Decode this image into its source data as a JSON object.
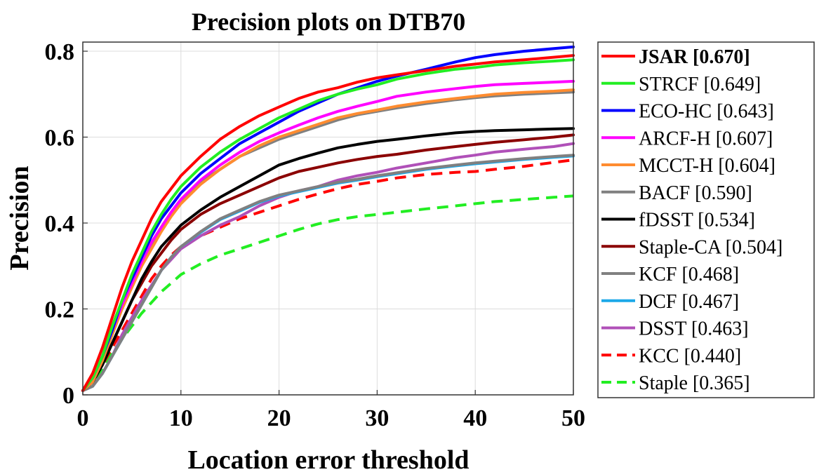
{
  "chart_data": {
    "type": "line",
    "title": "Precision plots on DTB70",
    "xlabel": "Location error threshold",
    "ylabel": "Precision",
    "xlim": [
      0,
      50
    ],
    "ylim": [
      0,
      0.82
    ],
    "xticks": [
      0,
      10,
      20,
      30,
      40,
      50
    ],
    "xtick_labels": [
      "0",
      "10",
      "20",
      "30",
      "40",
      "50"
    ],
    "yticks": [
      0,
      0.2,
      0.4,
      0.6,
      0.8
    ],
    "ytick_labels": [
      "0",
      "0.2",
      "0.4",
      "0.6",
      "0.8"
    ],
    "grid": true,
    "legend_position": "right",
    "x": [
      0,
      1,
      2,
      3,
      4,
      5,
      6,
      7,
      8,
      9,
      10,
      12,
      14,
      16,
      18,
      20,
      22,
      24,
      26,
      28,
      30,
      32,
      35,
      38,
      40,
      42,
      45,
      48,
      50
    ],
    "series": [
      {
        "name": "JSAR [0.670]",
        "label": "JSAR [0.670]",
        "bold": true,
        "color": "#ff0000",
        "dash": "solid",
        "values": [
          0.01,
          0.05,
          0.11,
          0.18,
          0.25,
          0.31,
          0.36,
          0.41,
          0.45,
          0.48,
          0.51,
          0.555,
          0.595,
          0.625,
          0.65,
          0.67,
          0.69,
          0.705,
          0.715,
          0.728,
          0.738,
          0.745,
          0.755,
          0.765,
          0.77,
          0.775,
          0.78,
          0.786,
          0.79
        ]
      },
      {
        "name": "STRCF [0.649]",
        "label": "STRCF [0.649]",
        "color": "#22ee22",
        "dash": "solid",
        "values": [
          0.01,
          0.04,
          0.09,
          0.16,
          0.22,
          0.28,
          0.33,
          0.38,
          0.42,
          0.455,
          0.485,
          0.53,
          0.565,
          0.595,
          0.62,
          0.645,
          0.665,
          0.685,
          0.7,
          0.712,
          0.722,
          0.735,
          0.748,
          0.758,
          0.762,
          0.768,
          0.773,
          0.777,
          0.78
        ]
      },
      {
        "name": "ECO-HC [0.643]",
        "label": "ECO-HC [0.643]",
        "color": "#0000ff",
        "dash": "solid",
        "values": [
          0.01,
          0.04,
          0.09,
          0.15,
          0.22,
          0.27,
          0.32,
          0.37,
          0.41,
          0.44,
          0.47,
          0.515,
          0.55,
          0.585,
          0.61,
          0.635,
          0.66,
          0.68,
          0.7,
          0.715,
          0.73,
          0.742,
          0.758,
          0.775,
          0.785,
          0.792,
          0.8,
          0.806,
          0.81
        ]
      },
      {
        "name": "ARCF-H [0.607]",
        "label": "ARCF-H [0.607]",
        "color": "#ff00ff",
        "dash": "solid",
        "values": [
          0.01,
          0.04,
          0.09,
          0.15,
          0.21,
          0.26,
          0.31,
          0.355,
          0.39,
          0.425,
          0.455,
          0.5,
          0.535,
          0.565,
          0.59,
          0.61,
          0.628,
          0.645,
          0.66,
          0.672,
          0.683,
          0.695,
          0.705,
          0.713,
          0.718,
          0.722,
          0.725,
          0.728,
          0.73
        ]
      },
      {
        "name": "MCCT-H [0.604]",
        "label": "MCCT-H [0.604]",
        "color": "#ff8c30",
        "dash": "solid",
        "values": [
          0.01,
          0.03,
          0.08,
          0.14,
          0.2,
          0.25,
          0.3,
          0.34,
          0.38,
          0.415,
          0.445,
          0.49,
          0.525,
          0.555,
          0.58,
          0.6,
          0.615,
          0.63,
          0.645,
          0.655,
          0.663,
          0.672,
          0.682,
          0.69,
          0.695,
          0.7,
          0.704,
          0.707,
          0.71
        ]
      },
      {
        "name": "BACF [0.590]",
        "label": "BACF [0.590]",
        "color": "#808080",
        "dash": "solid",
        "values": [
          0.01,
          0.04,
          0.09,
          0.15,
          0.21,
          0.26,
          0.31,
          0.35,
          0.39,
          0.425,
          0.45,
          0.495,
          0.525,
          0.555,
          0.575,
          0.595,
          0.61,
          0.625,
          0.64,
          0.652,
          0.66,
          0.668,
          0.678,
          0.687,
          0.692,
          0.696,
          0.7,
          0.703,
          0.705
        ]
      },
      {
        "name": "fDSST [0.534]",
        "label": "fDSST [0.534]",
        "color": "#000000",
        "dash": "solid",
        "values": [
          0.01,
          0.03,
          0.07,
          0.12,
          0.17,
          0.22,
          0.27,
          0.31,
          0.345,
          0.37,
          0.395,
          0.43,
          0.46,
          0.485,
          0.51,
          0.535,
          0.55,
          0.563,
          0.575,
          0.583,
          0.59,
          0.595,
          0.603,
          0.61,
          0.613,
          0.615,
          0.617,
          0.619,
          0.62
        ]
      },
      {
        "name": "Staple-CA [0.504]",
        "label": "Staple-CA [0.504]",
        "color": "#8b0000",
        "dash": "solid",
        "values": [
          0.01,
          0.03,
          0.07,
          0.12,
          0.17,
          0.22,
          0.26,
          0.3,
          0.33,
          0.36,
          0.385,
          0.42,
          0.445,
          0.465,
          0.485,
          0.505,
          0.52,
          0.53,
          0.54,
          0.548,
          0.555,
          0.56,
          0.57,
          0.578,
          0.583,
          0.588,
          0.594,
          0.6,
          0.605
        ]
      },
      {
        "name": "KCF [0.468]",
        "label": "KCF [0.468]",
        "color": "#808080",
        "dash": "solid",
        "values": [
          0.01,
          0.02,
          0.05,
          0.09,
          0.13,
          0.17,
          0.21,
          0.25,
          0.29,
          0.32,
          0.345,
          0.38,
          0.41,
          0.43,
          0.45,
          0.465,
          0.475,
          0.485,
          0.495,
          0.502,
          0.51,
          0.517,
          0.527,
          0.535,
          0.54,
          0.544,
          0.55,
          0.555,
          0.558
        ]
      },
      {
        "name": "DCF [0.467]",
        "label": "DCF [0.467]",
        "color": "#1ca8e8",
        "dash": "solid",
        "values": [
          0.01,
          0.02,
          0.05,
          0.09,
          0.13,
          0.17,
          0.21,
          0.25,
          0.29,
          0.32,
          0.345,
          0.378,
          0.408,
          0.428,
          0.448,
          0.463,
          0.473,
          0.483,
          0.493,
          0.5,
          0.508,
          0.515,
          0.525,
          0.533,
          0.538,
          0.542,
          0.548,
          0.553,
          0.556
        ]
      },
      {
        "name": "DSST [0.463]",
        "label": "DSST [0.463]",
        "color": "#b050b8",
        "dash": "solid",
        "values": [
          0.01,
          0.02,
          0.05,
          0.09,
          0.14,
          0.18,
          0.22,
          0.255,
          0.29,
          0.315,
          0.34,
          0.37,
          0.395,
          0.415,
          0.44,
          0.46,
          0.475,
          0.485,
          0.5,
          0.51,
          0.518,
          0.528,
          0.54,
          0.552,
          0.558,
          0.565,
          0.572,
          0.578,
          0.585
        ]
      },
      {
        "name": "KCC [0.440]",
        "label": "KCC [0.440]",
        "color": "#ff0000",
        "dash": "dashed",
        "values": [
          0.01,
          0.03,
          0.07,
          0.11,
          0.15,
          0.19,
          0.23,
          0.27,
          0.3,
          0.325,
          0.345,
          0.37,
          0.39,
          0.41,
          0.425,
          0.44,
          0.455,
          0.468,
          0.48,
          0.49,
          0.497,
          0.505,
          0.513,
          0.518,
          0.52,
          0.525,
          0.532,
          0.541,
          0.547
        ]
      },
      {
        "name": "Staple [0.365]",
        "label": "Staple [0.365]",
        "color": "#22ee22",
        "dash": "dashed",
        "values": [
          0.01,
          0.03,
          0.06,
          0.1,
          0.13,
          0.16,
          0.19,
          0.215,
          0.24,
          0.26,
          0.28,
          0.305,
          0.325,
          0.34,
          0.355,
          0.37,
          0.385,
          0.398,
          0.408,
          0.415,
          0.42,
          0.425,
          0.433,
          0.44,
          0.445,
          0.45,
          0.455,
          0.46,
          0.463
        ]
      }
    ]
  }
}
